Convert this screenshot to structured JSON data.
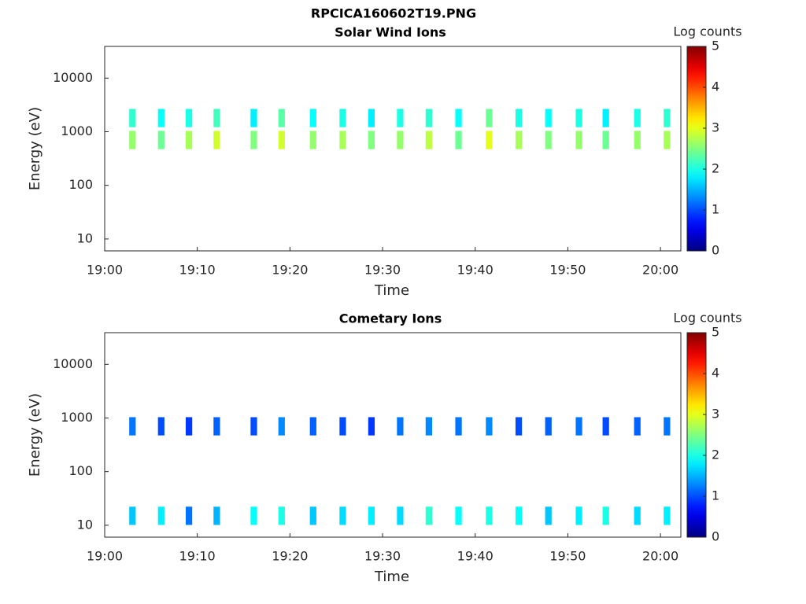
{
  "title": "RPCICA160602T19.PNG",
  "chart_data": [
    {
      "type": "heatmap",
      "title": "Solar Wind Ions",
      "x_label": "Time",
      "y_label": "Energy (eV)",
      "colorbar_label": "Log counts",
      "colormap": "jet",
      "y_scale": "log",
      "xlim": [
        0,
        62.2
      ],
      "xticks": [
        {
          "value": 0,
          "label": "19:00"
        },
        {
          "value": 10,
          "label": "19:10"
        },
        {
          "value": 20,
          "label": "19:20"
        },
        {
          "value": 30,
          "label": "19:30"
        },
        {
          "value": 40,
          "label": "19:40"
        },
        {
          "value": 50,
          "label": "19:50"
        },
        {
          "value": 60,
          "label": "20:00"
        }
      ],
      "ylim": [
        6,
        39000
      ],
      "yticks": [
        10,
        100,
        1000,
        10000
      ],
      "clim": [
        0,
        5
      ],
      "cticks": [
        0,
        1,
        2,
        3,
        4,
        5
      ],
      "x": [
        3.0,
        6.1,
        9.1,
        12.1,
        16.1,
        19.1,
        22.5,
        25.7,
        28.8,
        31.9,
        35.0,
        38.2,
        41.5,
        44.7,
        47.9,
        51.2,
        54.1,
        57.5,
        60.7,
        3.0,
        6.1,
        9.1,
        12.1,
        16.1,
        19.1,
        22.5,
        25.7,
        28.8,
        31.9,
        35.0,
        38.2,
        41.5,
        44.7,
        47.9,
        51.2,
        54.1,
        57.5,
        60.7
      ],
      "y": [
        700,
        700,
        700,
        700,
        700,
        700,
        700,
        700,
        700,
        700,
        700,
        700,
        700,
        700,
        700,
        700,
        700,
        700,
        700,
        1800,
        1800,
        1800,
        1800,
        1800,
        1800,
        1800,
        1800,
        1800,
        1800,
        1800,
        1800,
        1800,
        1800,
        1800,
        1800,
        1800,
        1800,
        1800
      ],
      "values": [
        2.6,
        2.4,
        2.7,
        2.9,
        2.5,
        2.9,
        2.6,
        2.7,
        2.5,
        2.6,
        2.8,
        2.4,
        3.0,
        2.7,
        2.5,
        2.6,
        2.4,
        2.6,
        2.7,
        2.1,
        1.9,
        2.0,
        2.2,
        1.8,
        2.3,
        1.9,
        2.0,
        1.8,
        2.0,
        2.1,
        1.9,
        2.4,
        2.0,
        1.9,
        2.0,
        1.8,
        2.0,
        2.1
      ]
    },
    {
      "type": "heatmap",
      "title": "Cometary Ions",
      "x_label": "Time",
      "y_label": "Energy (eV)",
      "colorbar_label": "Log counts",
      "colormap": "jet",
      "y_scale": "log",
      "xlim": [
        0,
        62.2
      ],
      "xticks": [
        {
          "value": 0,
          "label": "19:00"
        },
        {
          "value": 10,
          "label": "19:10"
        },
        {
          "value": 20,
          "label": "19:20"
        },
        {
          "value": 30,
          "label": "19:30"
        },
        {
          "value": 40,
          "label": "19:40"
        },
        {
          "value": 50,
          "label": "19:50"
        },
        {
          "value": 60,
          "label": "20:00"
        }
      ],
      "ylim": [
        6,
        39000
      ],
      "yticks": [
        10,
        100,
        1000,
        10000
      ],
      "clim": [
        0,
        5
      ],
      "cticks": [
        0,
        1,
        2,
        3,
        4,
        5
      ],
      "x": [
        3.0,
        6.1,
        9.1,
        12.1,
        16.1,
        19.1,
        22.5,
        25.7,
        28.8,
        31.9,
        35.0,
        38.2,
        41.5,
        44.7,
        47.9,
        51.2,
        54.1,
        57.5,
        60.7,
        3.0,
        6.1,
        9.1,
        12.1,
        16.1,
        19.1,
        22.5,
        25.7,
        28.8,
        31.9,
        35.0,
        38.2,
        41.5,
        44.7,
        47.9,
        51.2,
        54.1,
        57.5,
        60.7
      ],
      "y": [
        700,
        700,
        700,
        700,
        700,
        700,
        700,
        700,
        700,
        700,
        700,
        700,
        700,
        700,
        700,
        700,
        700,
        700,
        700,
        15,
        15,
        15,
        15,
        15,
        15,
        15,
        15,
        15,
        15,
        15,
        15,
        15,
        15,
        15,
        15,
        15,
        15,
        15
      ],
      "values": [
        1.2,
        1.0,
        0.9,
        1.1,
        1.0,
        1.3,
        1.1,
        1.0,
        0.9,
        1.2,
        1.3,
        1.2,
        1.3,
        1.0,
        1.1,
        1.2,
        1.0,
        1.1,
        1.2,
        1.6,
        1.8,
        1.2,
        1.5,
        1.9,
        2.0,
        1.6,
        1.7,
        1.8,
        1.7,
        2.1,
        1.9,
        2.0,
        1.9,
        1.6,
        1.8,
        2.0,
        1.7,
        1.8
      ]
    }
  ]
}
